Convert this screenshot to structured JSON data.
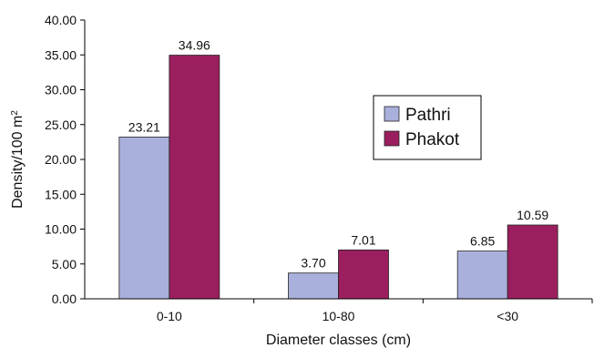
{
  "chart_data": {
    "type": "bar",
    "categories": [
      "0-10",
      "10-80",
      "<30"
    ],
    "series": [
      {
        "name": "Pathri",
        "values": [
          23.21,
          3.7,
          6.85
        ],
        "labels": [
          "23.21",
          "3.70",
          "6.85"
        ],
        "color": "#aab0dc"
      },
      {
        "name": "Phakot",
        "values": [
          34.96,
          7.01,
          10.59
        ],
        "labels": [
          "34.96",
          "7.01",
          "10.59"
        ],
        "color": "#9b1f5f"
      }
    ],
    "xlabel": "Diameter classes (cm)",
    "ylabel_main": "Density/100 m",
    "ylabel_sup": "2",
    "ylim": [
      0,
      40
    ],
    "yticks": [
      "0.00",
      "5.00",
      "10.00",
      "15.00",
      "20.00",
      "25.00",
      "30.00",
      "35.00",
      "40.00"
    ],
    "grid": false,
    "legend_position": "right"
  }
}
